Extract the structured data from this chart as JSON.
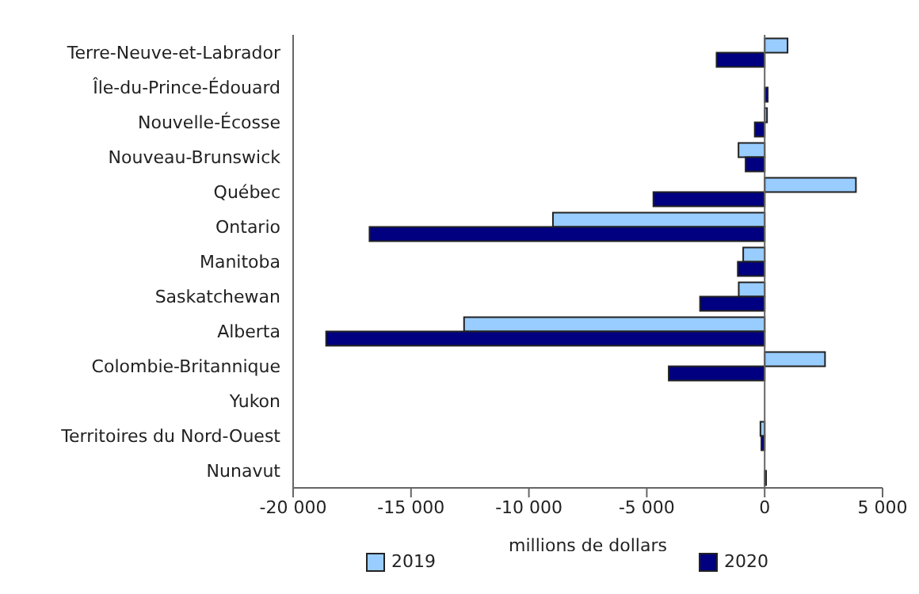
{
  "chart_data": {
    "type": "bar",
    "orientation": "horizontal",
    "xlabel": "millions de dollars",
    "categories": [
      "Terre-Neuve-et-Labrador",
      "Île-du-Prince-Édouard",
      "Nouvelle-Écosse",
      "Nouveau-Brunswick",
      "Québec",
      "Ontario",
      "Manitoba",
      "Saskatchewan",
      "Alberta",
      "Colombie-Britannique",
      "Yukon",
      "Territoires du Nord-Ouest",
      "Nunavut"
    ],
    "series": [
      {
        "name": "2019",
        "color": "#99ccff",
        "values": [
          970,
          null,
          100,
          -1110,
          3870,
          -8980,
          -910,
          -1100,
          -12750,
          2560,
          null,
          -180,
          null
        ]
      },
      {
        "name": "2020",
        "color": "#000080",
        "values": [
          -2040,
          130,
          -420,
          -810,
          -4720,
          -16760,
          -1140,
          -2740,
          -18600,
          -4070,
          null,
          -140,
          60
        ]
      }
    ],
    "xlim": [
      -20000,
      5000
    ],
    "xticks": [
      {
        "value": -20000,
        "label": "-20 000"
      },
      {
        "value": -15000,
        "label": "-15 000"
      },
      {
        "value": -10000,
        "label": "-10 000"
      },
      {
        "value": -5000,
        "label": "-5 000"
      },
      0,
      {
        "value": 5000,
        "label": "5 000"
      }
    ],
    "ref_lines": [
      {
        "axis": "x",
        "value": 0,
        "color": "#666666"
      }
    ],
    "grid": false,
    "legend": "bottom"
  }
}
